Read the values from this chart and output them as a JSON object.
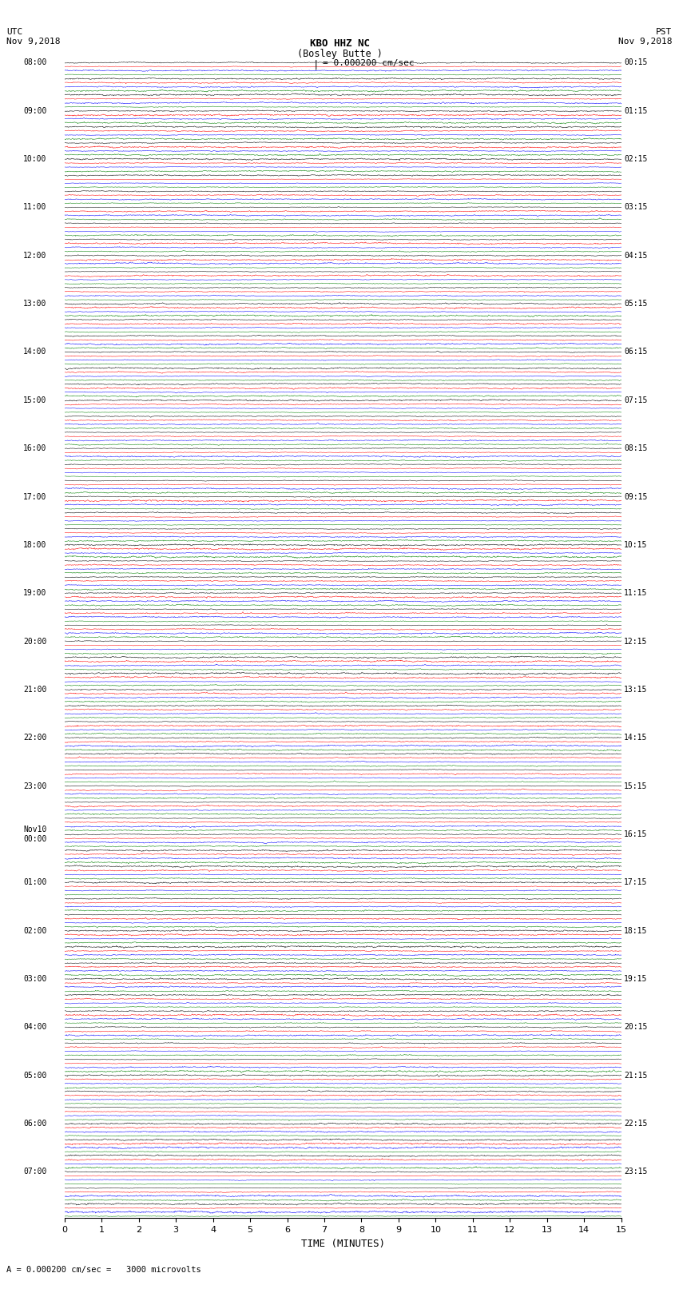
{
  "title_line1": "KBO HHZ NC",
  "title_line2": "(Bosley Butte )",
  "scale_label": "= 0.000200 cm/sec",
  "utc_label": "UTC\nNov 9,2018",
  "pst_label": "PST\nNov 9,2018",
  "bottom_label": "A = 0.000200 cm/sec =   3000 microvolts",
  "xlabel": "TIME (MINUTES)",
  "left_times_utc": [
    "08:00",
    "",
    "",
    "09:00",
    "",
    "",
    "10:00",
    "",
    "",
    "11:00",
    "",
    "",
    "12:00",
    "",
    "",
    "13:00",
    "",
    "",
    "14:00",
    "",
    "",
    "15:00",
    "",
    "",
    "16:00",
    "",
    "",
    "17:00",
    "",
    "",
    "18:00",
    "",
    "",
    "19:00",
    "",
    "",
    "20:00",
    "",
    "",
    "21:00",
    "",
    "",
    "22:00",
    "",
    "",
    "23:00",
    "",
    "",
    "Nov10\n00:00",
    "",
    "",
    "01:00",
    "",
    "",
    "02:00",
    "",
    "",
    "03:00",
    "",
    "",
    "04:00",
    "",
    "",
    "05:00",
    "",
    "",
    "06:00",
    "",
    "",
    "07:00",
    "",
    ""
  ],
  "right_times_pst": [
    "00:15",
    "",
    "",
    "01:15",
    "",
    "",
    "02:15",
    "",
    "",
    "03:15",
    "",
    "",
    "04:15",
    "",
    "",
    "05:15",
    "",
    "",
    "06:15",
    "",
    "",
    "07:15",
    "",
    "",
    "08:15",
    "",
    "",
    "09:15",
    "",
    "",
    "10:15",
    "",
    "",
    "11:15",
    "",
    "",
    "12:15",
    "",
    "",
    "13:15",
    "",
    "",
    "14:15",
    "",
    "",
    "15:15",
    "",
    "",
    "16:15",
    "",
    "",
    "17:15",
    "",
    "",
    "18:15",
    "",
    "",
    "19:15",
    "",
    "",
    "20:15",
    "",
    "",
    "21:15",
    "",
    "",
    "22:15",
    "",
    "",
    "23:15",
    "",
    ""
  ],
  "num_rows": 72,
  "colors": [
    "black",
    "red",
    "blue",
    "green"
  ],
  "bg_color": "white",
  "trace_amplitude": 0.35,
  "fig_width": 8.5,
  "fig_height": 16.13,
  "dpi": 100,
  "x_ticks": [
    0,
    1,
    2,
    3,
    4,
    5,
    6,
    7,
    8,
    9,
    10,
    11,
    12,
    13,
    14,
    15
  ],
  "x_lim": [
    0,
    15
  ],
  "minutes_per_trace": 15
}
